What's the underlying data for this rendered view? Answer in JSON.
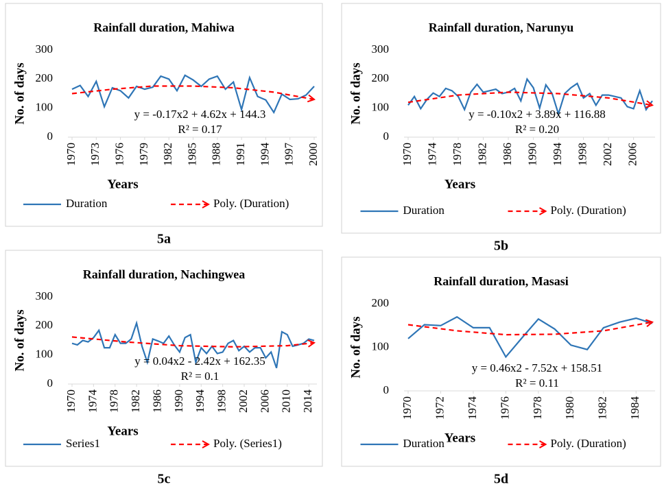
{
  "chart_data": [
    {
      "type": "line",
      "label": "5a",
      "title": "Rainfall duration, Mahiwa",
      "x_label": "Years",
      "y_label": "No. of days",
      "x": [
        1970,
        1971,
        1972,
        1973,
        1974,
        1975,
        1976,
        1977,
        1978,
        1979,
        1980,
        1981,
        1982,
        1983,
        1984,
        1985,
        1986,
        1987,
        1988,
        1989,
        1990,
        1991,
        1992,
        1993,
        1994,
        1995,
        1996,
        1997,
        1998,
        1999,
        2000
      ],
      "xlim": [
        1970,
        2000
      ],
      "xticks": [
        1970,
        1973,
        1976,
        1979,
        1982,
        1985,
        1988,
        1991,
        1994,
        1997,
        2000
      ],
      "ylim": [
        0,
        300
      ],
      "yticks": [
        0,
        100,
        200,
        300
      ],
      "series": [
        {
          "name": "Duration",
          "color": "#2e75b6",
          "values": [
            165,
            178,
            140,
            192,
            105,
            170,
            160,
            135,
            175,
            165,
            172,
            210,
            200,
            160,
            213,
            197,
            175,
            200,
            210,
            165,
            190,
            95,
            205,
            140,
            128,
            85,
            148,
            130,
            132,
            145,
            175
          ]
        },
        {
          "name": "Poly. (Duration)",
          "color": "#ff0000",
          "dash": true,
          "x": [
            1970,
            1975,
            1980,
            1985,
            1990,
            1995,
            2000
          ],
          "values": [
            150,
            165,
            176,
            176,
            170,
            155,
            130
          ]
        }
      ],
      "equation": "y = -0.17x2 + 4.62x + 144.3",
      "r_squared": "R² = 0.17"
    },
    {
      "type": "line",
      "label": "5b",
      "title": "Rainfall duration, Narunyu",
      "x_label": "Years",
      "y_label": "No. of days",
      "x": [
        1970,
        1971,
        1972,
        1973,
        1974,
        1975,
        1976,
        1977,
        1978,
        1979,
        1980,
        1981,
        1982,
        1983,
        1984,
        1985,
        1986,
        1987,
        1988,
        1989,
        1990,
        1991,
        1992,
        1993,
        1994,
        1995,
        1996,
        1997,
        1998,
        1999,
        2000,
        2001,
        2002,
        2003,
        2004,
        2005,
        2006,
        2007,
        2008,
        2009
      ],
      "xlim": [
        1970,
        2009
      ],
      "xticks": [
        1970,
        1974,
        1978,
        1982,
        1986,
        1990,
        1994,
        1998,
        2002,
        2006
      ],
      "ylim": [
        0,
        300
      ],
      "yticks": [
        0,
        100,
        200,
        300
      ],
      "series": [
        {
          "name": "Duration",
          "color": "#2e75b6",
          "values": [
            110,
            140,
            98,
            130,
            152,
            140,
            168,
            160,
            140,
            95,
            155,
            182,
            155,
            160,
            165,
            150,
            155,
            168,
            125,
            200,
            170,
            100,
            180,
            150,
            80,
            150,
            170,
            185,
            135,
            150,
            110,
            145,
            145,
            140,
            135,
            105,
            98,
            160,
            95,
            125
          ]
        },
        {
          "name": "Poly. (Duration)",
          "color": "#ff0000",
          "dash": true,
          "x": [
            1970,
            1978,
            1986,
            1994,
            2002,
            2009
          ],
          "values": [
            120,
            145,
            155,
            150,
            135,
            110
          ]
        }
      ],
      "equation": "y = -0.10x2 + 3.89x + 116.88",
      "r_squared": "R² = 0.20"
    },
    {
      "type": "line",
      "label": "5c",
      "title": "Rainfall duration, Nachingwea",
      "x_label": "Years",
      "y_label": "No. of days",
      "x": [
        1970,
        1971,
        1972,
        1973,
        1974,
        1975,
        1976,
        1977,
        1978,
        1979,
        1980,
        1981,
        1982,
        1983,
        1984,
        1985,
        1986,
        1987,
        1988,
        1989,
        1990,
        1991,
        1992,
        1993,
        1994,
        1995,
        1996,
        1997,
        1998,
        1999,
        2000,
        2001,
        2002,
        2003,
        2004,
        2005,
        2006,
        2007,
        2008,
        2009,
        2010,
        2011,
        2012,
        2013,
        2014,
        2015
      ],
      "xlim": [
        1970,
        2015
      ],
      "xticks": [
        1970,
        1974,
        1978,
        1982,
        1986,
        1990,
        1994,
        1998,
        2002,
        2006,
        2010,
        2014
      ],
      "ylim": [
        0,
        300
      ],
      "yticks": [
        0,
        100,
        200,
        300
      ],
      "series": [
        {
          "name": "Series1",
          "color": "#2e75b6",
          "values": [
            140,
            135,
            150,
            145,
            160,
            185,
            125,
            125,
            170,
            140,
            140,
            155,
            210,
            130,
            75,
            155,
            148,
            140,
            165,
            135,
            110,
            160,
            170,
            75,
            125,
            105,
            130,
            105,
            110,
            140,
            150,
            115,
            130,
            110,
            125,
            125,
            90,
            110,
            55,
            180,
            170,
            130,
            135,
            140,
            155,
            150
          ]
        },
        {
          "name": "Poly. (Series1)",
          "color": "#ff0000",
          "dash": true,
          "x": [
            1970,
            1980,
            1990,
            2000,
            2010,
            2015
          ],
          "values": [
            162,
            145,
            132,
            128,
            132,
            142
          ]
        }
      ],
      "equation": "y = 0.04x2 - 2.42x + 162.35",
      "r_squared": "R² = 0.1"
    },
    {
      "type": "line",
      "label": "5d",
      "title": "Rainfall duration, Masasi",
      "x_label": "Years",
      "y_label": "No. of days",
      "x": [
        1970,
        1971,
        1972,
        1973,
        1974,
        1975,
        1976,
        1977,
        1978,
        1979,
        1980,
        1981,
        1982,
        1983,
        1984,
        1985
      ],
      "xlim": [
        1970,
        1985
      ],
      "xticks": [
        1970,
        1972,
        1974,
        1976,
        1978,
        1980,
        1982,
        1984
      ],
      "ylim": [
        0,
        200
      ],
      "yticks": [
        0,
        100,
        200
      ],
      "series": [
        {
          "name": "Duration",
          "color": "#2e75b6",
          "values": [
            120,
            152,
            150,
            170,
            145,
            145,
            78,
            122,
            165,
            142,
            105,
            95,
            145,
            158,
            167,
            155
          ]
        },
        {
          "name": "Poly. (Duration)",
          "color": "#ff0000",
          "dash": true,
          "x": [
            1970,
            1973,
            1976,
            1979,
            1982,
            1985
          ],
          "values": [
            152,
            138,
            129,
            130,
            138,
            158
          ]
        }
      ],
      "equation": "y = 0.46x2 - 7.52x + 158.51",
      "r_squared": "R² = 0.11"
    }
  ]
}
